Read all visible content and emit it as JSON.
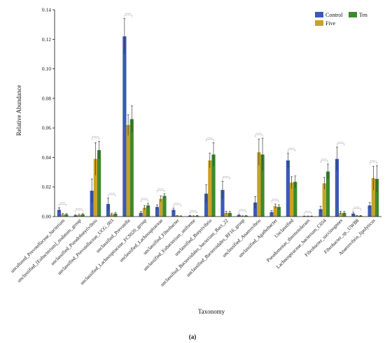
{
  "caption": "(a)",
  "chart_data": {
    "type": "bar",
    "title": "",
    "xlabel": "Taxonomy",
    "ylabel": "Relative Abundance",
    "ylim": [
      0,
      0.14
    ],
    "yticks": [
      "0.00",
      "0.02",
      "0.04",
      "0.06",
      "0.08",
      "0.10",
      "0.12",
      "0.14"
    ],
    "legend_position": "top-right",
    "categories": [
      "uncultured_Prevotellaceae_bacterium",
      "unclassified_[Eubacterium]_nodatum_group",
      "unclassified_Pseudobutyrivibrio",
      "unclassified_Prevotellaceae_UCG_003",
      "unclassified_Prevotella",
      "unclassified_Lachnospiraceae_FCS020_group",
      "unclassified_Lachnospiraceae",
      "unclassified_Fibrobacter",
      "unclassified_Eubacterium_uniforme",
      "unclassified_Butyrivibrio",
      "unclassified_Bacteroidales_bacterium_Bact_22",
      "unclassified_Bacteroidales_RF16_group",
      "unclassified_Anaerovibrio",
      "unclassified_Agathobacter",
      "Unclassified",
      "Pseudomonas_thermotolerans",
      "Lachnospiraceae_bacterium_C654",
      "Fibrobacter_succinogenes",
      "Fibrobacter_sp._UWB8",
      "Anaerovibrio_lipolyticus"
    ],
    "series": [
      {
        "name": "Control",
        "color": "#3a5bb5",
        "values": [
          0.0045,
          0.0008,
          0.0175,
          0.0085,
          0.122,
          0.0025,
          0.0065,
          0.0045,
          0.0005,
          0.0155,
          0.018,
          0.001,
          0.0095,
          0.003,
          0.038,
          0.0002,
          0.005,
          0.039,
          0.002,
          0.0075
        ],
        "errors": [
          0.0015,
          0.0005,
          0.008,
          0.004,
          0.012,
          0.001,
          0.0015,
          0.0012,
          0.0003,
          0.006,
          0.006,
          0.0005,
          0.004,
          0.001,
          0.005,
          0.0002,
          0.002,
          0.008,
          0.001,
          0.002
        ]
      },
      {
        "name": "Five",
        "color": "#c9a227",
        "values": [
          0.0015,
          0.001,
          0.039,
          0.0015,
          0.062,
          0.006,
          0.012,
          0.0005,
          0.0003,
          0.038,
          0.0025,
          0.0003,
          0.0435,
          0.007,
          0.023,
          0.0002,
          0.0225,
          0.0025,
          0.0005,
          0.026
        ],
        "errors": [
          0.0005,
          0.0005,
          0.011,
          0.0008,
          0.007,
          0.0015,
          0.002,
          0.0003,
          0.0002,
          0.005,
          0.001,
          0.0002,
          0.009,
          0.0015,
          0.004,
          0.0002,
          0.004,
          0.001,
          0.0003,
          0.008
        ]
      },
      {
        "name": "Ten",
        "color": "#3d8a2e",
        "values": [
          0.0015,
          0.0015,
          0.045,
          0.002,
          0.066,
          0.0075,
          0.014,
          0.0003,
          0.0005,
          0.042,
          0.0025,
          0.0005,
          0.042,
          0.0065,
          0.0235,
          0.0002,
          0.0305,
          0.0025,
          0.0005,
          0.0255
        ],
        "errors": [
          0.0005,
          0.0005,
          0.006,
          0.0008,
          0.009,
          0.0015,
          0.0015,
          0.0002,
          0.0003,
          0.008,
          0.001,
          0.0002,
          0.011,
          0.0015,
          0.004,
          0.0002,
          0.005,
          0.001,
          0.0003,
          0.009
        ]
      }
    ]
  }
}
